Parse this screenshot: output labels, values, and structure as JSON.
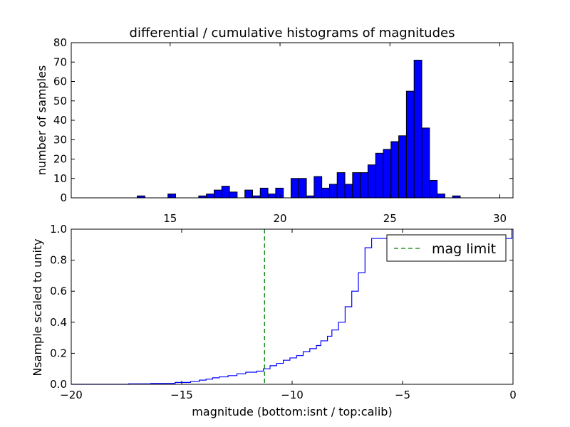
{
  "chart_data": [
    {
      "type": "bar",
      "title": "differential / cumulative histograms of magnitudes",
      "xlabel": "",
      "ylabel": "number of samples",
      "xlim": [
        10.5,
        30.6
      ],
      "ylim": [
        0,
        80
      ],
      "x_ticks": [
        15,
        20,
        25,
        30
      ],
      "x_tick_labels": [
        "15",
        "20",
        "25",
        "30"
      ],
      "y_ticks": [
        0,
        10,
        20,
        30,
        40,
        50,
        60,
        70,
        80
      ],
      "y_tick_labels": [
        "0",
        "10",
        "20",
        "30",
        "40",
        "50",
        "60",
        "70",
        "80"
      ],
      "x_ticks_position": "top-axis labels shown between panels",
      "bar_color": "#0000ff",
      "bin_width": 0.35,
      "bins": [
        {
          "x": 13.5,
          "count": 1
        },
        {
          "x": 14.9,
          "count": 2
        },
        {
          "x": 16.3,
          "count": 1
        },
        {
          "x": 16.65,
          "count": 2
        },
        {
          "x": 17.0,
          "count": 4
        },
        {
          "x": 17.35,
          "count": 6
        },
        {
          "x": 17.7,
          "count": 3
        },
        {
          "x": 18.4,
          "count": 4
        },
        {
          "x": 18.75,
          "count": 1
        },
        {
          "x": 19.1,
          "count": 5
        },
        {
          "x": 19.45,
          "count": 2
        },
        {
          "x": 19.8,
          "count": 5
        },
        {
          "x": 20.5,
          "count": 10
        },
        {
          "x": 20.85,
          "count": 10
        },
        {
          "x": 21.2,
          "count": 1
        },
        {
          "x": 21.55,
          "count": 11
        },
        {
          "x": 21.9,
          "count": 5
        },
        {
          "x": 22.25,
          "count": 7
        },
        {
          "x": 22.6,
          "count": 13
        },
        {
          "x": 22.95,
          "count": 7
        },
        {
          "x": 23.3,
          "count": 13
        },
        {
          "x": 23.65,
          "count": 13
        },
        {
          "x": 24.0,
          "count": 17
        },
        {
          "x": 24.35,
          "count": 23
        },
        {
          "x": 24.7,
          "count": 25
        },
        {
          "x": 25.05,
          "count": 29
        },
        {
          "x": 25.4,
          "count": 32
        },
        {
          "x": 25.75,
          "count": 55
        },
        {
          "x": 26.1,
          "count": 71
        },
        {
          "x": 26.45,
          "count": 36
        },
        {
          "x": 26.8,
          "count": 9
        },
        {
          "x": 27.15,
          "count": 2
        },
        {
          "x": 27.85,
          "count": 1
        }
      ]
    },
    {
      "type": "line",
      "title": "",
      "xlabel": "magnitude (bottom:isnt / top:calib)",
      "ylabel": "Nsample scaled to unity",
      "xlim": [
        -20,
        0
      ],
      "ylim": [
        0,
        1.0
      ],
      "x_ticks": [
        -20,
        -15,
        -10,
        -5,
        0
      ],
      "x_tick_labels": [
        "−20",
        "−15",
        "−10",
        "−5",
        "0"
      ],
      "y_ticks": [
        0,
        0.2,
        0.4,
        0.6,
        0.8,
        1.0
      ],
      "y_tick_labels": [
        "0.0",
        "0.2",
        "0.4",
        "0.6",
        "0.8",
        "1.0"
      ],
      "series": [
        {
          "color": "#0000ff",
          "drawstyle": "steps",
          "x": [
            -20,
            -17.4,
            -16.4,
            -15.3,
            -14.6,
            -14.2,
            -13.9,
            -13.6,
            -13.3,
            -12.9,
            -12.5,
            -12.1,
            -11.6,
            -11.3,
            -11.0,
            -10.7,
            -10.4,
            -10.1,
            -9.8,
            -9.5,
            -9.2,
            -8.9,
            -8.7,
            -8.4,
            -8.2,
            -7.9,
            -7.6,
            -7.3,
            -7.0,
            -6.7,
            -6.4,
            -0.05
          ],
          "y": [
            0.0,
            0.003,
            0.005,
            0.012,
            0.018,
            0.027,
            0.033,
            0.042,
            0.048,
            0.056,
            0.068,
            0.078,
            0.085,
            0.1,
            0.12,
            0.135,
            0.155,
            0.17,
            0.185,
            0.21,
            0.23,
            0.25,
            0.28,
            0.31,
            0.35,
            0.4,
            0.5,
            0.6,
            0.72,
            0.88,
            0.94,
            1.0
          ]
        }
      ],
      "vline": {
        "x": -11.25,
        "color": "#008000",
        "style": "dashed",
        "label": "mag limit"
      },
      "legend": {
        "position": "top-right",
        "entries": [
          "mag limit"
        ]
      }
    }
  ]
}
